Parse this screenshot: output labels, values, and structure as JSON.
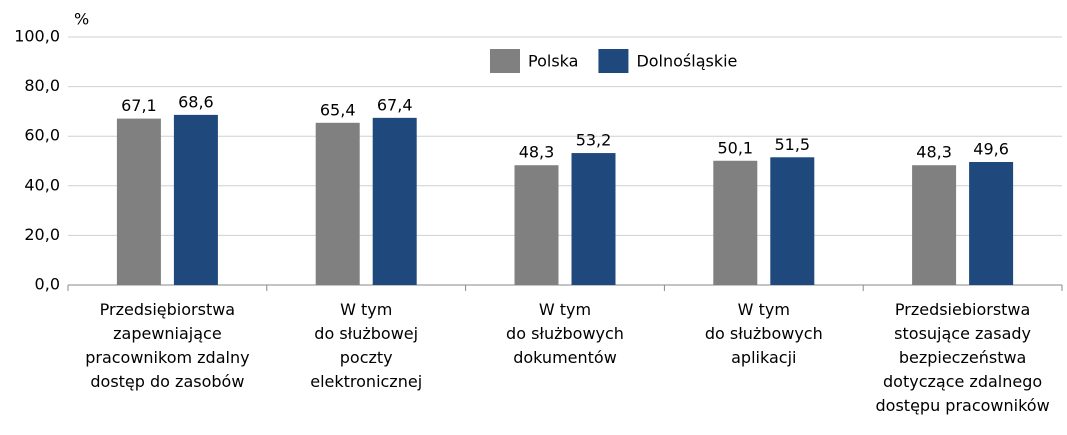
{
  "chart_data": {
    "type": "bar",
    "y_label": "%",
    "categories": [
      "Przedsiębiorstwa\nzapewniające\npracownikom zdalny\ndostęp do zasobów",
      "W tym\ndo służbowej\npoczty\nelektronicznej",
      "W tym\ndo służbowych\ndokumentów",
      "W tym\ndo służbowych\naplikacji",
      "Przedsiebiorstwa\nstosujące zasady\nbezpieczeństwa\ndotyczące zdalnego\ndostępu pracowników"
    ],
    "series": [
      {
        "name": "Polska",
        "color": "#808080",
        "values": [
          67.1,
          65.4,
          48.3,
          50.1,
          48.3
        ],
        "value_labels": [
          "67,1",
          "65,4",
          "48,3",
          "50,1",
          "48,3"
        ]
      },
      {
        "name": "Dolnośląskie",
        "color": "#1f497d",
        "values": [
          68.6,
          67.4,
          53.2,
          51.5,
          49.6
        ],
        "value_labels": [
          "68,6",
          "67,4",
          "53,2",
          "51,5",
          "49,6"
        ]
      }
    ],
    "ylim": [
      0,
      100
    ],
    "yticks": [
      {
        "value": 0,
        "label": "0,0"
      },
      {
        "value": 20,
        "label": "20,0"
      },
      {
        "value": 40,
        "label": "40,0"
      },
      {
        "value": 60,
        "label": "60,0"
      },
      {
        "value": 80,
        "label": "80,0"
      },
      {
        "value": 100,
        "label": "100,0"
      }
    ],
    "grid": true,
    "legend": "top"
  }
}
